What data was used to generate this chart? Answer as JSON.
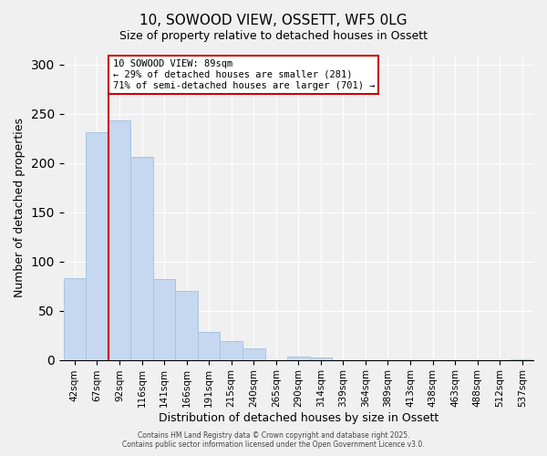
{
  "title": "10, SOWOOD VIEW, OSSETT, WF5 0LG",
  "subtitle": "Size of property relative to detached houses in Ossett",
  "xlabel": "Distribution of detached houses by size in Ossett",
  "ylabel": "Number of detached properties",
  "categories": [
    "42sqm",
    "67sqm",
    "92sqm",
    "116sqm",
    "141sqm",
    "166sqm",
    "191sqm",
    "215sqm",
    "240sqm",
    "265sqm",
    "290sqm",
    "314sqm",
    "339sqm",
    "364sqm",
    "389sqm",
    "413sqm",
    "438sqm",
    "463sqm",
    "488sqm",
    "512sqm",
    "537sqm"
  ],
  "values": [
    83,
    231,
    243,
    206,
    82,
    70,
    28,
    19,
    12,
    0,
    3,
    2,
    0,
    0,
    0,
    0,
    0,
    0,
    0,
    0,
    1
  ],
  "bar_color": "#c5d8f0",
  "bar_edge_color": "#a8c4e0",
  "vline_color": "#cc0000",
  "vline_x": 1.5,
  "ylim": [
    0,
    310
  ],
  "yticks": [
    0,
    50,
    100,
    150,
    200,
    250,
    300
  ],
  "annotation_line1": "10 SOWOOD VIEW: 89sqm",
  "annotation_line2": "← 29% of detached houses are smaller (281)",
  "annotation_line3": "71% of semi-detached houses are larger (701) →",
  "annotation_box_color": "#ffffff",
  "annotation_box_edge_color": "#cc0000",
  "footer_line1": "Contains HM Land Registry data © Crown copyright and database right 2025.",
  "footer_line2": "Contains public sector information licensed under the Open Government Licence v3.0.",
  "title_fontsize": 11,
  "subtitle_fontsize": 9,
  "axis_label_fontsize": 9,
  "tick_fontsize": 7.5,
  "background_color": "#f0f0f0"
}
